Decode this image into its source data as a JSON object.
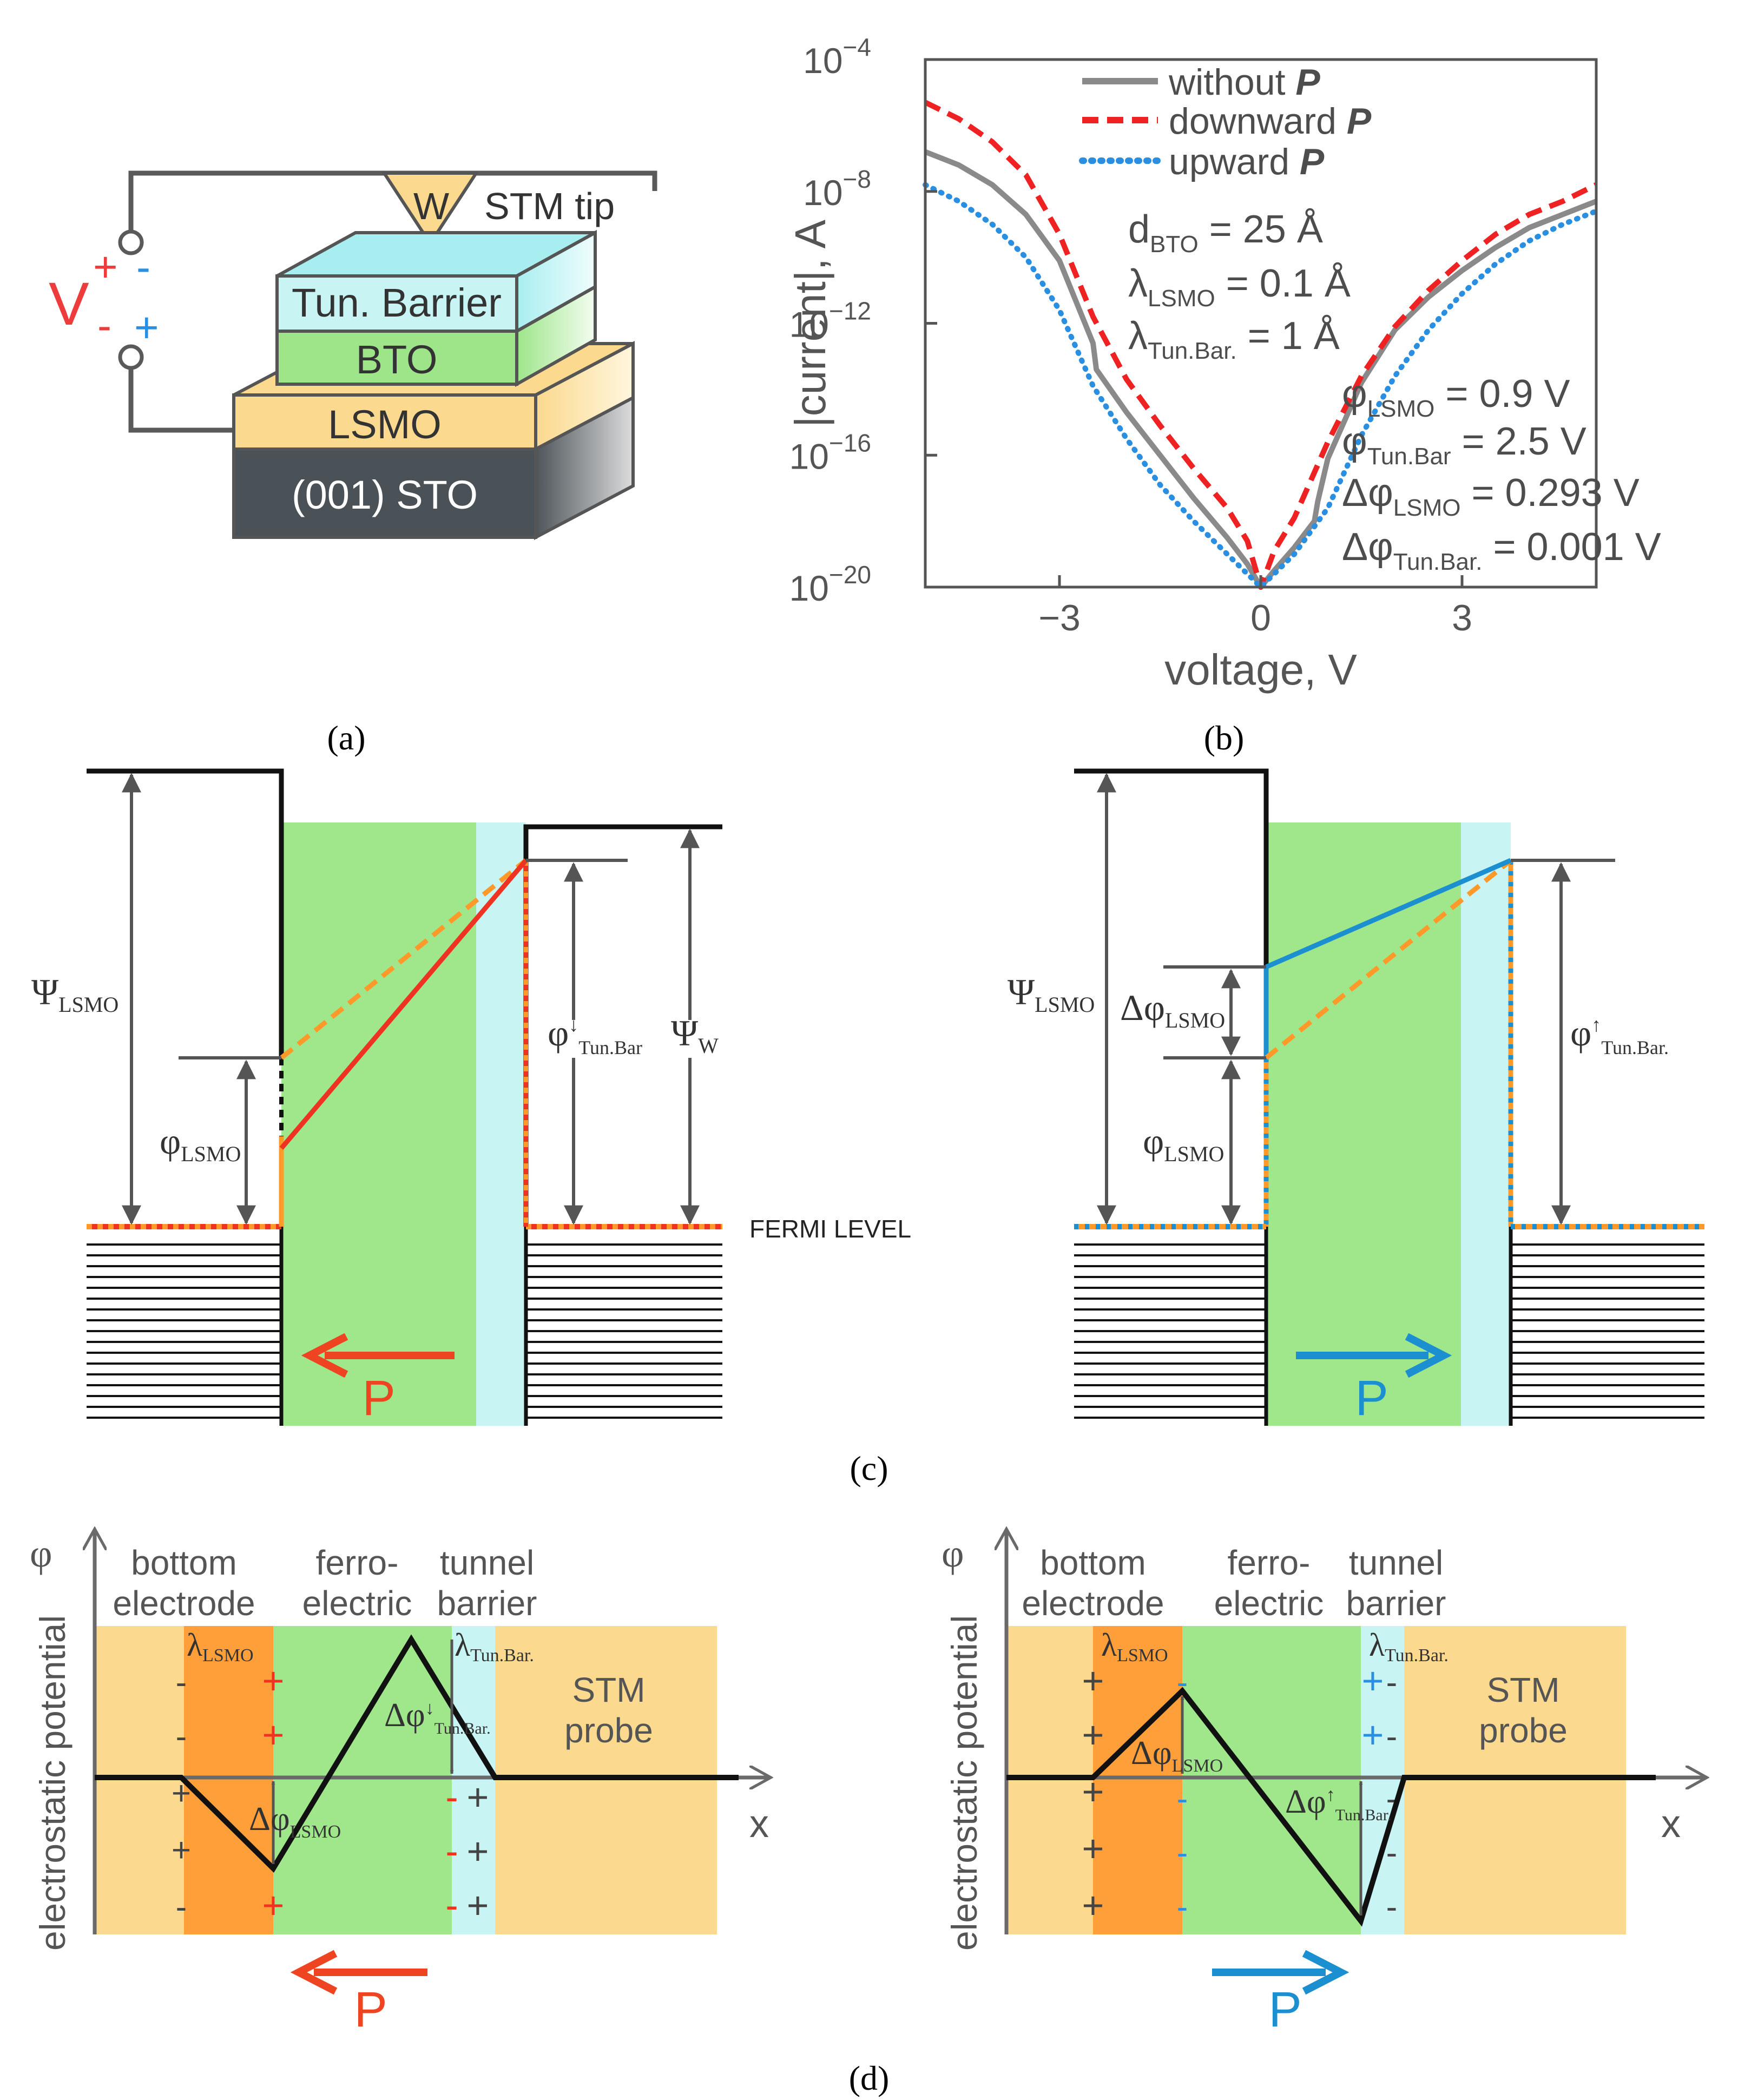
{
  "panel_labels": {
    "a": "(a)",
    "b": "(b)",
    "c": "(c)",
    "d": "(d)"
  },
  "panel_a": {
    "voltage_label": "V",
    "plus": "+",
    "minus": "-",
    "tip_letter": "W",
    "tip_label": "STM tip",
    "layers": [
      "Tun. Barrier",
      "BTO",
      "LSMO",
      "(001) STO"
    ]
  },
  "panel_b": {
    "parameters": {
      "d": {
        "sym": "d",
        "sub": "BTO",
        "val": " = 25 Å"
      },
      "lam1": {
        "sym": "λ",
        "sub": "LSMO",
        "val": " = 0.1 Å"
      },
      "lam2": {
        "sym": "λ",
        "sub": "Tun.Bar.",
        "val": " = 1 Å"
      },
      "phi1": {
        "sym": "φ",
        "sub": "LSMO",
        "val": " = 0.9 V"
      },
      "phi2": {
        "sym": "φ",
        "sub": "Tun.Bar",
        "val": " = 2.5 V"
      },
      "dphi1": {
        "sym": "Δφ",
        "sub": "LSMO",
        "val": " = 0.293 V"
      },
      "dphi2": {
        "sym": "Δφ",
        "sub": "Tun.Bar.",
        "val": " = 0.001 V"
      }
    }
  },
  "panel_c": {
    "psi_lsmo": {
      "sym": "Ψ",
      "sub": "LSMO"
    },
    "phi_lsmo": {
      "sym": "φ",
      "sub": "LSMO"
    },
    "psi_w": {
      "sym": "Ψ",
      "sub": "W"
    },
    "phi_tun_down": {
      "sym": "φ",
      "sup": "↓",
      "sub": "Tun.Bar"
    },
    "phi_tun_up": {
      "sym": "φ",
      "sup": "↑",
      "sub": "Tun.Bar."
    },
    "dphi_lsmo": {
      "sym": "Δφ",
      "sub": "LSMO"
    },
    "fermi": "FERMI LEVEL",
    "p": "P"
  },
  "panel_d": {
    "phi_axis": "φ",
    "y_label": "electrostatic potential",
    "x_label": "x",
    "bottom_electrode": [
      "bottom",
      "electrode"
    ],
    "ferroelectric": [
      "ferro-",
      "electric"
    ],
    "tunnel_barrier": [
      "tunnel",
      "barrier"
    ],
    "stm_probe": [
      "STM",
      "probe"
    ],
    "lam_lsmo": {
      "sym": "λ",
      "sub": "LSMO"
    },
    "lam_tun": {
      "sym": "λ",
      "sub": "Tun.Bar."
    },
    "dphi_lsmo": {
      "sym": "Δφ",
      "sub": "LSMO"
    },
    "dphi_tun_down": {
      "sym": "Δφ",
      "sup": "↓",
      "sub": "Tun.Bar."
    },
    "dphi_tun_up": {
      "sym": "Δφ",
      "sup": "↑",
      "sub": "Tun.Bar."
    },
    "p": "P",
    "plus": "+",
    "minus": "-"
  },
  "chart_data": {
    "type": "line",
    "title": "",
    "xlabel": "voltage, V",
    "ylabel": "|current|, A",
    "xlim": [
      -5,
      5
    ],
    "ylim": [
      -20,
      -4
    ],
    "yscale": "log10",
    "xticks": [
      -3,
      0,
      3
    ],
    "xtick_labels": [
      "−3",
      "0",
      "3"
    ],
    "yticks": [
      -20,
      -16,
      -12,
      -8,
      -4
    ],
    "ytick_labels": [
      {
        "base": "10",
        "exp": "−20"
      },
      {
        "base": "10",
        "exp": "−16"
      },
      {
        "base": "10",
        "exp": "−12"
      },
      {
        "base": "10",
        "exp": "−8"
      },
      {
        "base": "10",
        "exp": "−4"
      }
    ],
    "legend_position": "top-right",
    "series": [
      {
        "name": "without ",
        "name_italic": "P",
        "color": "#8a8a8a",
        "style": "solid",
        "x": [
          -5.0,
          -4.5,
          -4.0,
          -3.5,
          -3.0,
          -2.5,
          -2.45,
          -2.0,
          -1.5,
          -1.0,
          -0.5,
          -0.2,
          0.0,
          0.2,
          0.5,
          0.8,
          0.85,
          1.0,
          1.5,
          2.0,
          2.5,
          3.0,
          3.5,
          4.0,
          4.5,
          5.0
        ],
        "y": [
          -6.8,
          -7.2,
          -7.8,
          -8.7,
          -10.1,
          -12.6,
          -13.4,
          -14.7,
          -16.0,
          -17.3,
          -18.5,
          -19.3,
          -20.0,
          -19.5,
          -18.8,
          -18.0,
          -17.4,
          -16.1,
          -13.8,
          -12.2,
          -11.2,
          -10.4,
          -9.7,
          -9.1,
          -8.7,
          -8.3
        ]
      },
      {
        "name": "downward ",
        "name_italic": "P",
        "color": "#ee2222",
        "style": "dashed",
        "x": [
          -5.0,
          -4.5,
          -4.0,
          -3.5,
          -3.0,
          -2.5,
          -2.0,
          -1.5,
          -1.0,
          -0.5,
          -0.2,
          0.0,
          0.2,
          0.5,
          1.0,
          1.5,
          2.0,
          2.5,
          3.0,
          3.5,
          4.0,
          4.5,
          5.0
        ],
        "y": [
          -5.3,
          -5.8,
          -6.5,
          -7.5,
          -9.3,
          -11.8,
          -13.7,
          -15.1,
          -16.4,
          -17.6,
          -18.6,
          -20.0,
          -18.9,
          -17.9,
          -15.6,
          -13.6,
          -12.1,
          -11.0,
          -10.1,
          -9.3,
          -8.7,
          -8.3,
          -7.8
        ]
      },
      {
        "name": "upward ",
        "name_italic": "P",
        "color": "#2a8fe0",
        "style": "dotted",
        "x": [
          -5.0,
          -4.5,
          -4.0,
          -3.5,
          -3.0,
          -2.5,
          -2.0,
          -1.5,
          -1.0,
          -0.5,
          -0.2,
          0.0,
          0.2,
          0.5,
          1.0,
          1.5,
          2.0,
          2.5,
          3.0,
          3.5,
          4.0,
          4.5,
          5.0
        ],
        "y": [
          -7.8,
          -8.3,
          -9.0,
          -10.0,
          -11.6,
          -13.9,
          -15.5,
          -16.9,
          -18.0,
          -19.0,
          -19.6,
          -20.0,
          -19.6,
          -19.0,
          -17.6,
          -15.4,
          -13.6,
          -12.2,
          -11.1,
          -10.2,
          -9.5,
          -9.0,
          -8.6
        ]
      }
    ]
  }
}
